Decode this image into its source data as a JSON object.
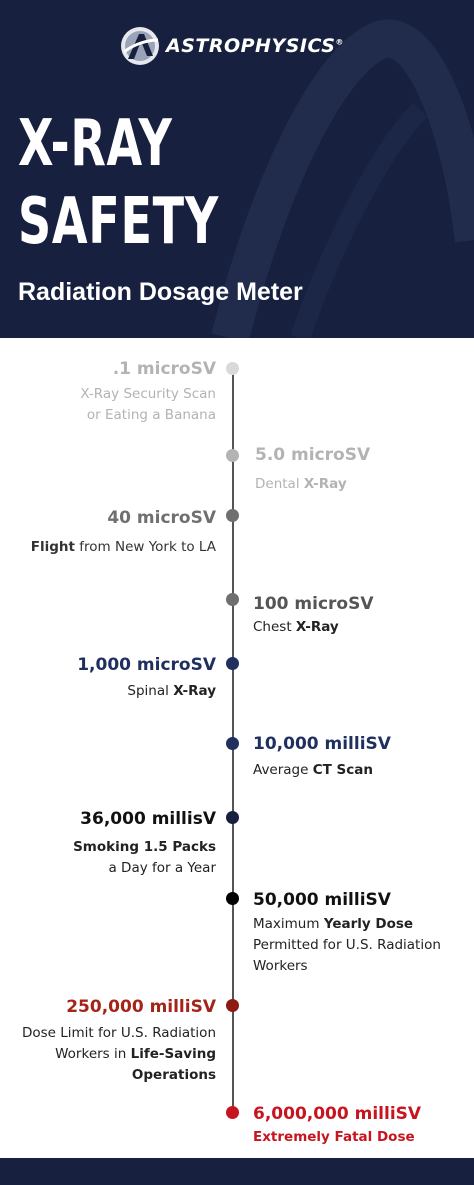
{
  "brand": {
    "name": "ASTROPHYSICS",
    "mark": "®"
  },
  "title": {
    "line1": "X-RAY",
    "line2": "SAFETY",
    "subtitle": "Radiation Dosage Meter"
  },
  "colors": {
    "navy": "#17213f",
    "light_gray": "#b3b3b3",
    "mid_gray": "#6f6f6f",
    "blue": "#1f2f5f",
    "black": "#111111",
    "red": "#a52419",
    "bright_red": "#c8141e"
  },
  "entries": [
    {
      "value": ".1 microSV",
      "pre": "",
      "bold": "",
      "post": "X-Ray Security Scan",
      "extra": "or Eating a Banana"
    },
    {
      "value": "5.0 microSV",
      "pre": "Dental ",
      "bold": "X-Ray",
      "post": ""
    },
    {
      "value": "40 microSV",
      "pre": "",
      "bold": "Flight",
      "post": " from New York to LA"
    },
    {
      "value": "100 microSV",
      "pre": "Chest ",
      "bold": "X-Ray",
      "post": ""
    },
    {
      "value": "1,000 microSV",
      "pre": "Spinal ",
      "bold": "X-Ray",
      "post": ""
    },
    {
      "value": "10,000 milliSV",
      "pre": "Average ",
      "bold": "CT Scan",
      "post": ""
    },
    {
      "value": "36,000 millisV",
      "pre": "",
      "bold": "Smoking 1.5 Packs",
      "post": "",
      "extra": "a Day for a  Year"
    },
    {
      "value": "50,000 milliSV",
      "pre": "Maximum ",
      "bold": "Yearly Dose",
      "post": " Permitted for U.S. Radiation Workers"
    },
    {
      "value": "250,000 milliSV",
      "pre": "Dose Limit for U.S. Radiation Workers in ",
      "bold": "Life-Saving Operations",
      "post": ""
    },
    {
      "value": "6,000,000 milliSV",
      "pre": "",
      "bold": "Extremely Fatal Dose",
      "post": ""
    }
  ]
}
